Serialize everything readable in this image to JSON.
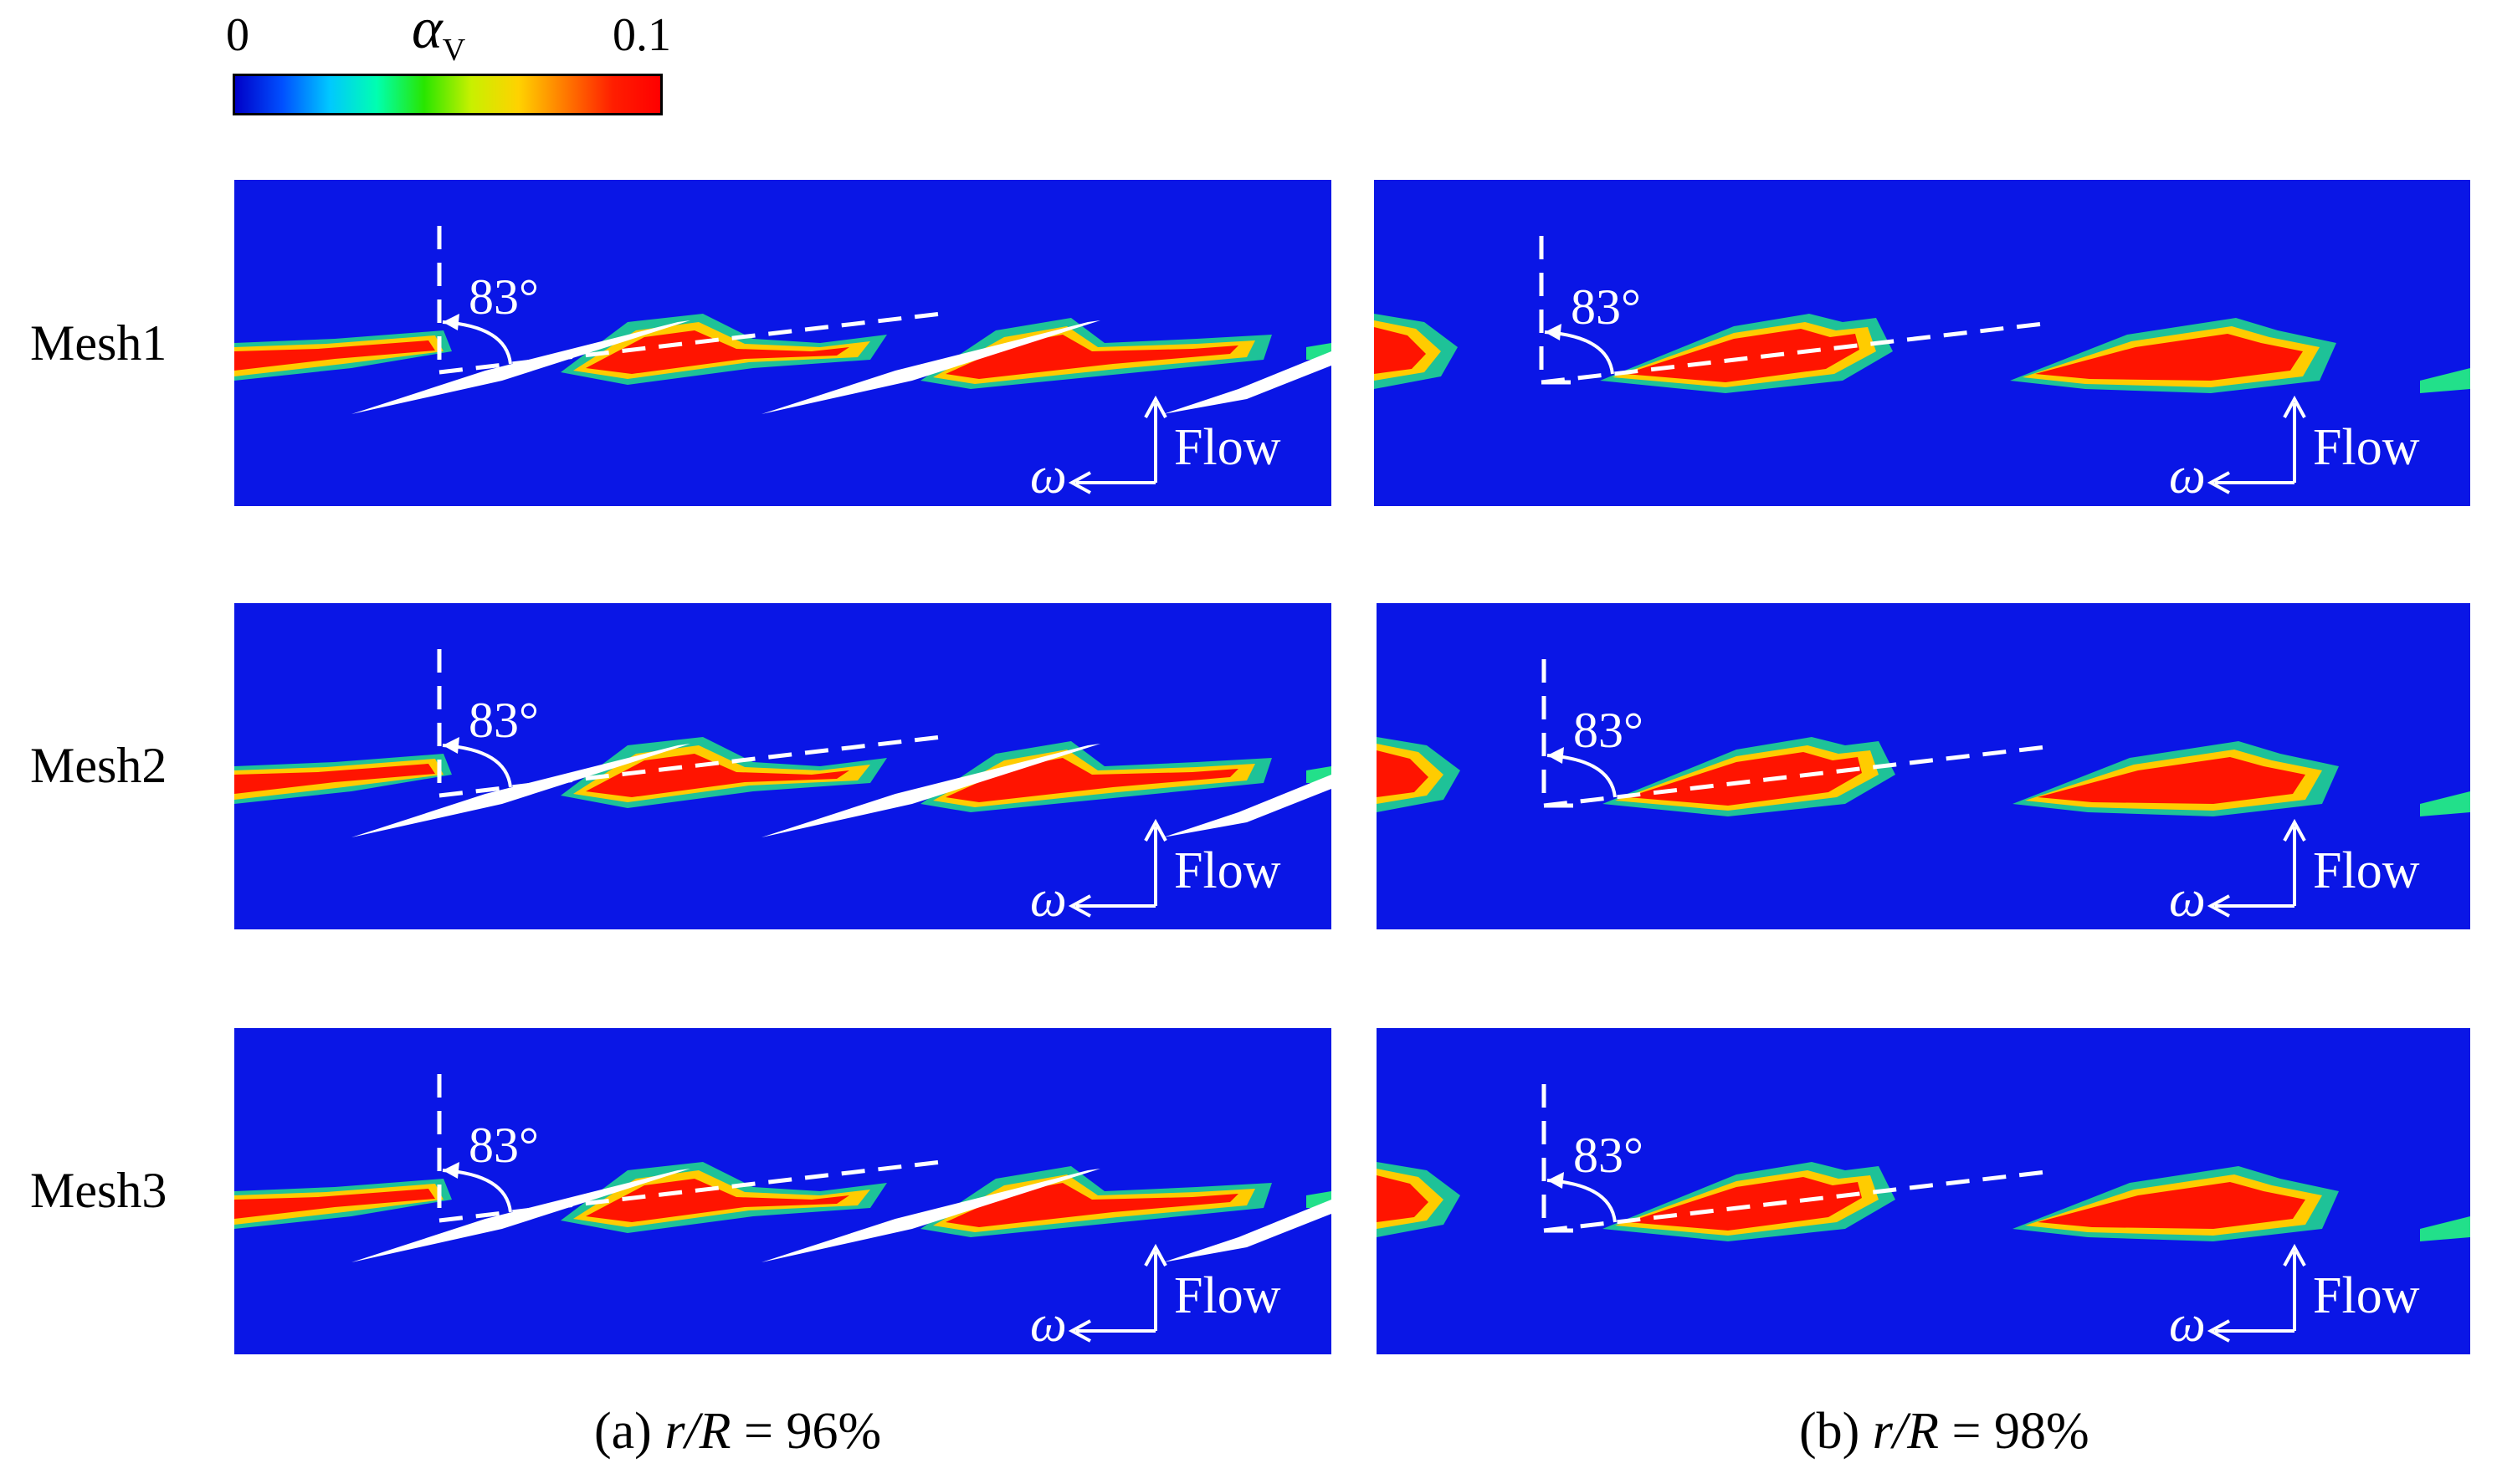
{
  "colorbar": {
    "min_label": "0",
    "max_label": "0.1",
    "variable_symbol": "α",
    "variable_subscript": "V",
    "colors": [
      "#0000c8",
      "#0050ff",
      "#00c8ff",
      "#00ffb0",
      "#28e600",
      "#c8f000",
      "#ffd200",
      "#ff7800",
      "#ff1e00",
      "#ff0000"
    ]
  },
  "rows": [
    {
      "label": "Mesh1"
    },
    {
      "label": "Mesh2"
    },
    {
      "label": "Mesh3"
    }
  ],
  "columns": [
    {
      "caption_prefix": "(a) ",
      "caption_var": "r/R",
      "caption_suffix": " = 96%"
    },
    {
      "caption_prefix": "(b) ",
      "caption_var": "r/R",
      "caption_suffix": " = 98%"
    }
  ],
  "annotations": {
    "angle": "83°",
    "flow": "Flow",
    "omega": "ω"
  },
  "palette": {
    "background": "#0a16e6",
    "cavity_core": "#ff1400",
    "cavity_mid": "#ffcc00",
    "cavity_edge": "#22e08a",
    "blade": "#ffffff"
  }
}
